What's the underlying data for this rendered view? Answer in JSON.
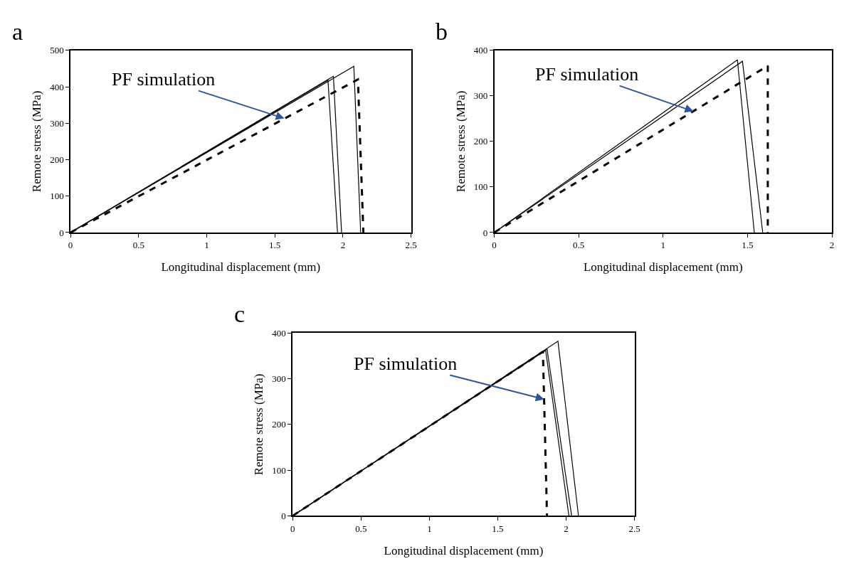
{
  "chart_data": [
    {
      "type": "line",
      "title": "a",
      "xlabel": "Longitudinal displacement (mm)",
      "ylabel": "Remote stress (MPa)",
      "xlim": [
        0,
        2.5
      ],
      "xticks": [
        0,
        0.5,
        1,
        1.5,
        2,
        2.5
      ],
      "ylim": [
        0,
        500
      ],
      "yticks": [
        0,
        100,
        200,
        300,
        400,
        500
      ],
      "grid": false,
      "series": [
        {
          "color": "#000000",
          "line_style": "solid",
          "x": [
            0,
            1.89,
            1.96
          ],
          "values": [
            0,
            418,
            0
          ]
        },
        {
          "color": "#000000",
          "line_style": "solid",
          "x": [
            0,
            1.93,
            1.99
          ],
          "values": [
            0,
            429,
            0
          ]
        },
        {
          "color": "#000000",
          "line_style": "solid",
          "x": [
            0,
            2.08,
            2.13
          ],
          "values": [
            0,
            456,
            0
          ]
        },
        {
          "color": "#000000",
          "line_style": "dashed",
          "x": [
            0,
            2.11,
            2.15
          ],
          "values": [
            0,
            420,
            0
          ]
        }
      ],
      "annotations": [
        {
          "text": "PF simulation",
          "x": 1.57,
          "y": 313
        }
      ]
    },
    {
      "type": "line",
      "title": "b",
      "xlabel": "Longitudinal displacement (mm)",
      "ylabel": "Remote stress (MPa)",
      "xlim": [
        0,
        2
      ],
      "xticks": [
        0,
        0.5,
        1,
        1.5,
        2
      ],
      "ylim": [
        0,
        400
      ],
      "yticks": [
        0,
        100,
        200,
        300,
        400
      ],
      "grid": false,
      "series": [
        {
          "color": "#000000",
          "line_style": "solid",
          "x": [
            0,
            1.44,
            1.54
          ],
          "values": [
            0,
            379,
            0
          ]
        },
        {
          "color": "#000000",
          "line_style": "solid",
          "x": [
            0,
            1.47,
            1.59
          ],
          "values": [
            0,
            376,
            0
          ]
        },
        {
          "color": "#000000",
          "line_style": "dashed",
          "x": [
            0,
            1.62,
            1.62
          ],
          "values": [
            0,
            366,
            0
          ]
        }
      ],
      "annotations": [
        {
          "text": "PF simulation",
          "x": 1.18,
          "y": 266
        }
      ]
    },
    {
      "type": "line",
      "title": "c",
      "xlabel": "Longitudinal displacement (mm)",
      "ylabel": "Remote stress (MPa)",
      "xlim": [
        0,
        2.5
      ],
      "xticks": [
        0,
        0.5,
        1,
        1.5,
        2,
        2.5
      ],
      "ylim": [
        0,
        400
      ],
      "yticks": [
        0,
        100,
        200,
        300,
        400
      ],
      "grid": false,
      "series": [
        {
          "color": "#000000",
          "line_style": "solid",
          "x": [
            0,
            1.85,
            2.02
          ],
          "values": [
            0,
            362,
            0
          ]
        },
        {
          "color": "#000000",
          "line_style": "solid",
          "x": [
            0,
            1.86,
            2.04
          ],
          "values": [
            0,
            365,
            0
          ]
        },
        {
          "color": "#000000",
          "line_style": "solid",
          "x": [
            0,
            1.94,
            2.09
          ],
          "values": [
            0,
            382,
            0
          ]
        },
        {
          "color": "#000000",
          "line_style": "dashed",
          "x": [
            0,
            1.83,
            1.86
          ],
          "values": [
            0,
            359,
            0
          ]
        }
      ],
      "annotations": [
        {
          "text": "PF simulation",
          "x": 1.84,
          "y": 255
        }
      ]
    }
  ]
}
